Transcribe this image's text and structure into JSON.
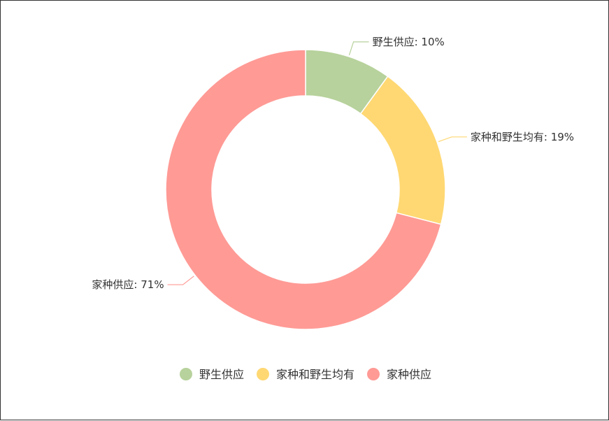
{
  "chart_data": {
    "type": "pie",
    "categories": [
      "野生供应",
      "家种和野生均有",
      "家种供应"
    ],
    "values": [
      10,
      19,
      71
    ],
    "slice_labels": [
      "野生供应: 10%",
      "家种和野生均有: 19%",
      "家种供应: 71%"
    ],
    "colors": [
      "#b7d29c",
      "#ffd873",
      "#ff9a95"
    ],
    "donut": true,
    "legend_position": "bottom"
  }
}
